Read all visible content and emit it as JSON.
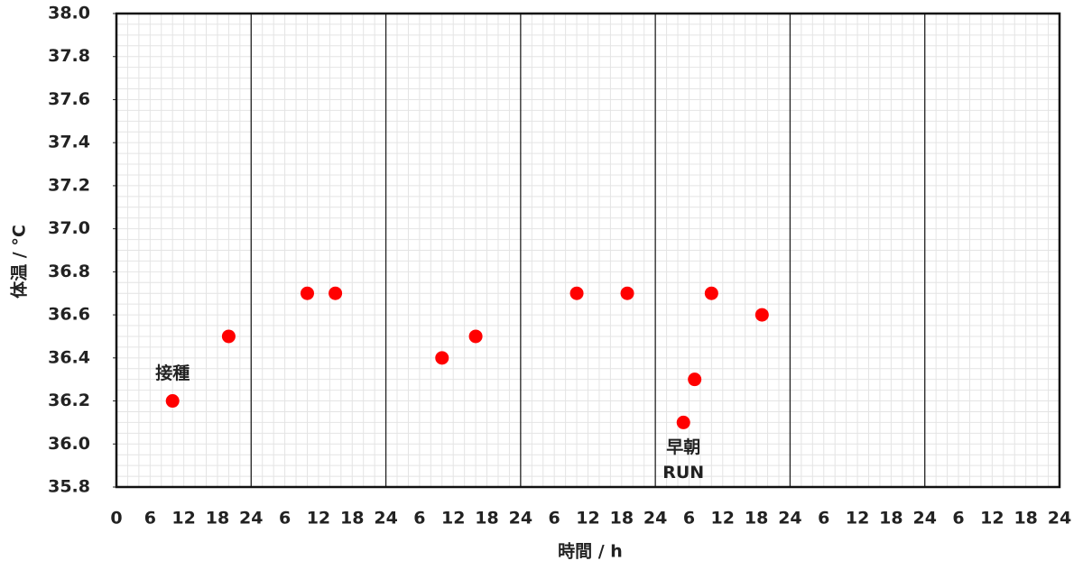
{
  "chart_data": {
    "type": "scatter",
    "xlabel": "時間 / h",
    "ylabel": "体温 / °C",
    "x": [
      10,
      20,
      34,
      39,
      58,
      64,
      82,
      91,
      101,
      103,
      106,
      115
    ],
    "series": [
      {
        "name": "体温",
        "color": "#ff0000",
        "values": [
          36.2,
          36.5,
          36.7,
          36.7,
          36.4,
          36.5,
          36.7,
          36.7,
          36.1,
          36.3,
          36.7,
          36.6
        ]
      }
    ],
    "xlim": [
      0,
      168
    ],
    "xticks": [
      0,
      6,
      12,
      18,
      24,
      {
        "value": 30,
        "label": "6"
      },
      {
        "value": 36,
        "label": "12"
      },
      {
        "value": 42,
        "label": "18"
      },
      {
        "value": 48,
        "label": "24"
      },
      {
        "value": 54,
        "label": "6"
      },
      {
        "value": 60,
        "label": "12"
      },
      {
        "value": 66,
        "label": "18"
      },
      {
        "value": 72,
        "label": "24"
      },
      {
        "value": 78,
        "label": "6"
      },
      {
        "value": 84,
        "label": "12"
      },
      {
        "value": 90,
        "label": "18"
      },
      {
        "value": 96,
        "label": "24"
      },
      {
        "value": 102,
        "label": "6"
      },
      {
        "value": 108,
        "label": "12"
      },
      {
        "value": 114,
        "label": "18"
      },
      {
        "value": 120,
        "label": "24"
      },
      {
        "value": 126,
        "label": "6"
      },
      {
        "value": 132,
        "label": "12"
      },
      {
        "value": 138,
        "label": "18"
      },
      {
        "value": 144,
        "label": "24"
      },
      {
        "value": 150,
        "label": "6"
      },
      {
        "value": 156,
        "label": "12"
      },
      {
        "value": 162,
        "label": "18"
      },
      {
        "value": 168,
        "label": "24"
      }
    ],
    "ylim": [
      35.8,
      38.0
    ],
    "yticks": [
      35.8,
      {
        "value": 36.0,
        "label": "36.0"
      },
      36.2,
      36.4,
      36.6,
      36.8,
      {
        "value": 37.0,
        "label": "37.0"
      },
      37.2,
      37.4,
      37.6,
      37.8,
      {
        "value": 38.0,
        "label": "38.0"
      }
    ],
    "separator_every": 24,
    "minor_grid": {
      "x_step": 2,
      "y_step": 0.05
    },
    "annotations": [
      {
        "lines": [
          "接種"
        ],
        "point": 0
      },
      {
        "lines": [
          "早朝",
          "RUN"
        ],
        "point": 8
      }
    ]
  }
}
